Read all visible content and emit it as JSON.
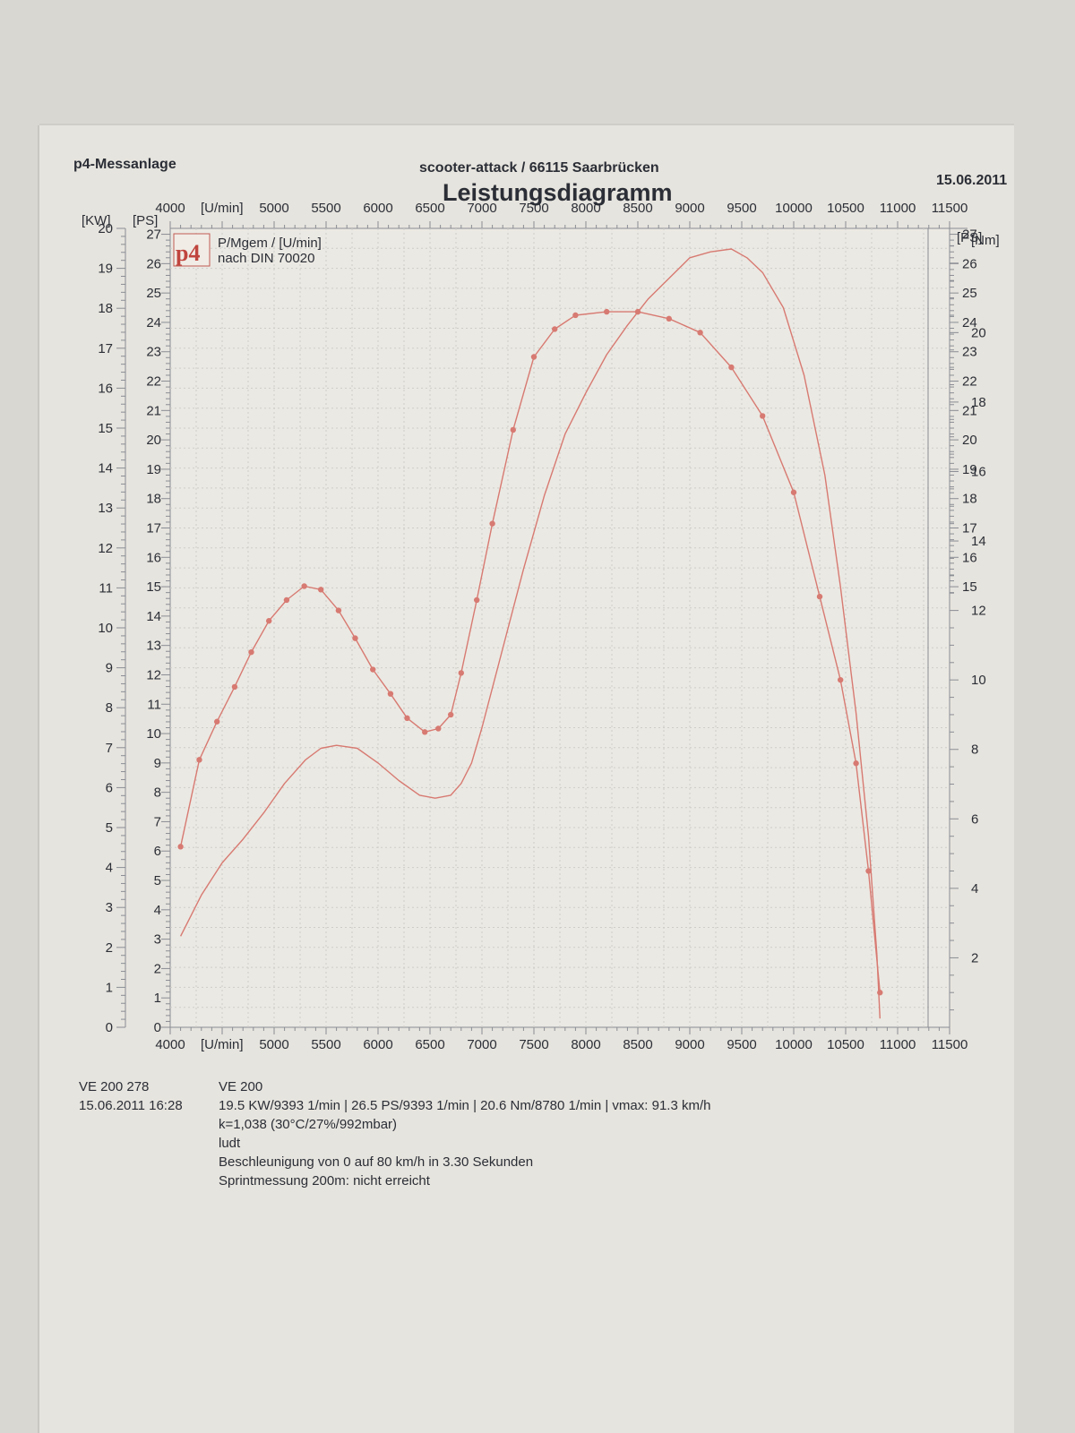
{
  "header": {
    "company": "p4-Messanlage",
    "address": "scooter-attack  / 66115 Saarbrücken",
    "date": "15.06.2011",
    "title": "Leistungsdiagramm"
  },
  "legend": {
    "logo": "p4",
    "line1": "P/Mgem / [U/min]",
    "line2": "nach DIN 70020"
  },
  "footer": {
    "vehicle_id": "VE 200 278",
    "vehicle_name": "VE 200",
    "datetime": "15.06.2011  16:28",
    "peaks": "19.5 KW/9393 1/min  |  26.5 PS/9393 1/min  |  20.6 Nm/8780 1/min | vmax: 91.3 km/h",
    "correction": "k=1,038 (30°C/27%/992mbar)",
    "operator": "ludt",
    "acceleration": "Beschleunigung von 0 auf 80 km/h in 3.30 Sekunden",
    "sprint": "Sprintmessung 200m: nicht erreicht"
  },
  "chart_data": {
    "type": "line",
    "title": "Leistungsdiagramm",
    "x_axis": {
      "label": "[U/min]",
      "range": [
        4000,
        11500
      ],
      "ticks": [
        4000,
        5000,
        5500,
        6000,
        6500,
        7000,
        7500,
        8000,
        8500,
        9000,
        9500,
        10000,
        10500,
        11000,
        11500
      ]
    },
    "left_axis_kw": {
      "label": "[KW]",
      "range": [
        0,
        20
      ],
      "ticks": [
        0,
        1,
        2,
        3,
        4,
        5,
        6,
        7,
        8,
        9,
        10,
        11,
        12,
        13,
        14,
        15,
        16,
        17,
        18,
        19,
        20
      ]
    },
    "left_axis_ps": {
      "label": "[PS]",
      "range": [
        0,
        27.2
      ],
      "ticks": [
        0,
        1,
        2,
        3,
        4,
        5,
        6,
        7,
        8,
        9,
        10,
        11,
        12,
        13,
        14,
        15,
        16,
        17,
        18,
        19,
        20,
        21,
        22,
        23,
        24,
        25,
        26,
        27
      ]
    },
    "right_axis_ps": {
      "label": "[PS]",
      "ticks": [
        15,
        16,
        17,
        18,
        19,
        20,
        21,
        22,
        23,
        24,
        25,
        26,
        27
      ]
    },
    "right_axis_nm": {
      "label": "[Nm]",
      "range": [
        0,
        23
      ],
      "ticks": [
        2,
        4,
        6,
        8,
        10,
        12,
        14,
        16,
        18,
        20
      ]
    },
    "grid": true,
    "series": [
      {
        "color": "#d77a72",
        "unit": "PS",
        "x": [
          4100,
          4300,
          4500,
          4700,
          4900,
          5100,
          5300,
          5450,
          5600,
          5800,
          6000,
          6200,
          6400,
          6550,
          6700,
          6800,
          6900,
          7000,
          7200,
          7400,
          7600,
          7800,
          8000,
          8200,
          8400,
          8600,
          8800,
          9000,
          9200,
          9400,
          9550,
          9700,
          9900,
          10100,
          10300,
          10450,
          10600,
          10720,
          10800,
          10830
        ],
        "values": [
          3.1,
          4.5,
          5.6,
          6.4,
          7.3,
          8.3,
          9.1,
          9.5,
          9.6,
          9.5,
          9.0,
          8.4,
          7.9,
          7.8,
          7.9,
          8.3,
          9.0,
          10.2,
          12.9,
          15.6,
          18.1,
          20.2,
          21.6,
          22.9,
          23.9,
          24.8,
          25.5,
          26.2,
          26.4,
          26.5,
          26.2,
          25.7,
          24.5,
          22.2,
          18.8,
          15.0,
          10.7,
          6.5,
          2.5,
          0.3
        ]
      },
      {
        "color": "#d77a72",
        "unit": "Nm",
        "markers": true,
        "x": [
          4100,
          4280,
          4450,
          4620,
          4780,
          4950,
          5120,
          5290,
          5450,
          5620,
          5780,
          5950,
          6120,
          6280,
          6450,
          6580,
          6700,
          6800,
          6950,
          7100,
          7300,
          7500,
          7700,
          7900,
          8200,
          8500,
          8800,
          9100,
          9400,
          9700,
          10000,
          10250,
          10450,
          10600,
          10720,
          10830
        ],
        "values": [
          5.2,
          7.7,
          8.8,
          9.8,
          10.8,
          11.7,
          12.3,
          12.7,
          12.6,
          12.0,
          11.2,
          10.3,
          9.6,
          8.9,
          8.5,
          8.6,
          9.0,
          10.2,
          12.3,
          14.5,
          17.2,
          19.3,
          20.1,
          20.5,
          20.6,
          20.6,
          20.4,
          20.0,
          19.0,
          17.6,
          15.4,
          12.4,
          10.0,
          7.6,
          4.5,
          1.0
        ]
      }
    ]
  }
}
